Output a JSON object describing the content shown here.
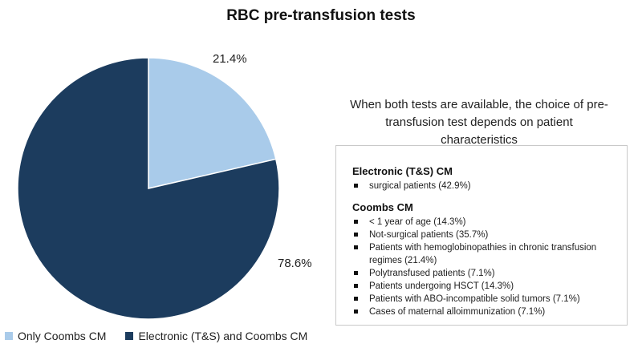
{
  "colors": {
    "light": "#a9cbea",
    "dark": "#1c3c5e"
  },
  "chart_data": {
    "type": "pie",
    "title": "RBC pre-transfusion tests",
    "categories": [
      "Only Coombs CM",
      "Electronic (T&S) and Coombs CM"
    ],
    "values": [
      21.4,
      78.6
    ],
    "labels": [
      "21.4%",
      "78.6%"
    ],
    "legend_position": "bottom-left"
  },
  "note": "When both tests are available, the choice of pre-transfusion test depends on patient characteristics",
  "box": {
    "electronic": {
      "heading": "Electronic (T&S) CM",
      "items": [
        "surgical patients (42.9%)"
      ]
    },
    "coombs": {
      "heading": "Coombs CM",
      "items": [
        "< 1 year of age (14.3%)",
        "Not-surgical patients (35.7%)",
        "Patients with hemoglobinopathies in chronic transfusion regimes (21.4%)",
        "Polytransfused patients (7.1%)",
        "Patients undergoing HSCT (14.3%)",
        "Patients with ABO-incompatible solid tumors (7.1%)",
        "Cases of maternal alloimmunization (7.1%)"
      ]
    }
  }
}
